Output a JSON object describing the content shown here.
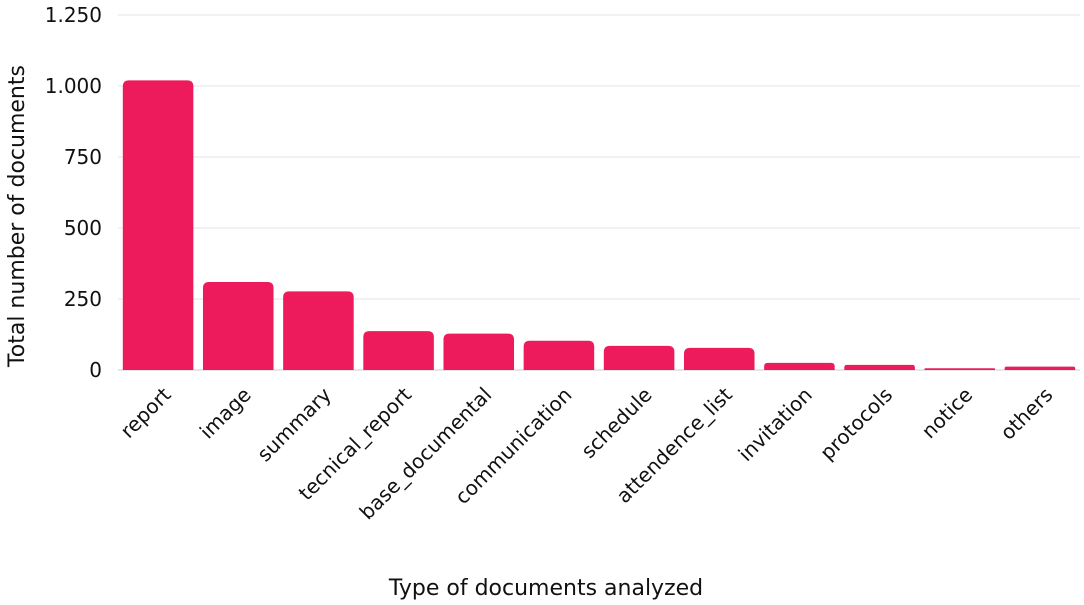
{
  "chart_data": {
    "type": "bar",
    "title": "",
    "xlabel": "Type of documents analyzed",
    "ylabel": "Total number of documents",
    "ylim": [
      0,
      1250
    ],
    "yticks": [
      0,
      250,
      500,
      750,
      1000,
      1250
    ],
    "ytick_labels": [
      "0",
      "250",
      "500",
      "750",
      "1.000",
      "1.250"
    ],
    "grid": true,
    "bar_color": "#ED1B5C",
    "categories": [
      "report",
      "image",
      "summary",
      "tecnical_report",
      "base_documental",
      "communication",
      "schedule",
      "attendence_list",
      "invitation",
      "protocols",
      "notice",
      "others"
    ],
    "values": [
      1020,
      310,
      277,
      137,
      128,
      103,
      85,
      78,
      25,
      18,
      6,
      12
    ]
  }
}
